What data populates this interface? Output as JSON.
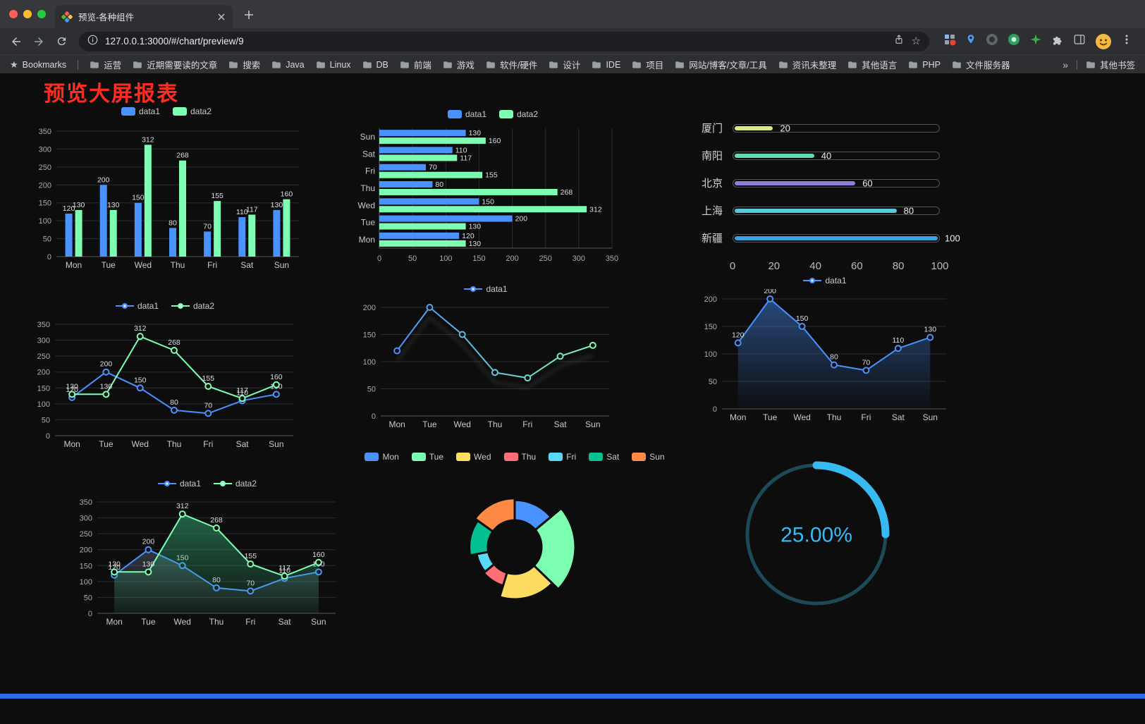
{
  "browser": {
    "tab_title": "预览-各种组件",
    "url": "127.0.0.1:3000/#/chart/preview/9",
    "bookmarks_bar": {
      "label": "Bookmarks",
      "folders": [
        "运营",
        "近期需要读的文章",
        "搜索",
        "Java",
        "Linux",
        "DB",
        "前端",
        "游戏",
        "软件/硬件",
        "设计",
        "IDE",
        "项目",
        "网站/博客/文章/工具",
        "资讯未整理",
        "其他语言",
        "PHP",
        "文件服务器"
      ],
      "overflow": "»",
      "other": "其他书签"
    }
  },
  "page": {
    "title": "预览大屏报表",
    "title_color": "#ff2d1f",
    "footer_color": "#2e6be6"
  },
  "chart_data": [
    {
      "id": "bar-vertical",
      "type": "bar",
      "legend": "bar",
      "categories": [
        "Mon",
        "Tue",
        "Wed",
        "Thu",
        "Fri",
        "Sat",
        "Sun"
      ],
      "ylim": [
        0,
        350
      ],
      "ystep": 50,
      "series": [
        {
          "name": "data1",
          "color": "#4992ff",
          "values": [
            120,
            200,
            150,
            80,
            70,
            110,
            130
          ]
        },
        {
          "name": "data2",
          "color": "#7cffb2",
          "values": [
            130,
            130,
            312,
            268,
            155,
            117,
            160
          ]
        }
      ]
    },
    {
      "id": "bar-horizontal",
      "type": "hbar",
      "legend": "bar",
      "categories": [
        "Mon",
        "Tue",
        "Wed",
        "Thu",
        "Fri",
        "Sat",
        "Sun"
      ],
      "xlim": [
        0,
        350
      ],
      "xstep": 50,
      "series": [
        {
          "name": "data1",
          "color": "#4992ff",
          "values": [
            120,
            200,
            150,
            80,
            70,
            110,
            130
          ]
        },
        {
          "name": "data2",
          "color": "#7cffb2",
          "values": [
            130,
            130,
            312,
            268,
            155,
            117,
            160
          ]
        }
      ]
    },
    {
      "id": "capsule-rank",
      "type": "capsule",
      "max": 100,
      "items": [
        {
          "label": "厦门",
          "value": 20,
          "color": "#d8ec85"
        },
        {
          "label": "南阳",
          "value": 40,
          "color": "#63dcb2"
        },
        {
          "label": "北京",
          "value": 60,
          "color": "#8b80dc"
        },
        {
          "label": "上海",
          "value": 80,
          "color": "#58c8dc"
        },
        {
          "label": "新疆",
          "value": 100,
          "color": "#3ba1e2"
        }
      ],
      "axis_ticks": [
        0,
        20,
        40,
        60,
        80,
        100
      ]
    },
    {
      "id": "line-two-series",
      "type": "line",
      "legend": "line",
      "labels": true,
      "categories": [
        "Mon",
        "Tue",
        "Wed",
        "Thu",
        "Fri",
        "Sat",
        "Sun"
      ],
      "ylim": [
        0,
        350
      ],
      "ystep": 50,
      "series": [
        {
          "name": "data1",
          "color": "#4992ff",
          "values": [
            120,
            200,
            150,
            80,
            70,
            110,
            130
          ]
        },
        {
          "name": "data2",
          "color": "#7cffb2",
          "values": [
            130,
            130,
            312,
            268,
            155,
            117,
            160
          ]
        }
      ]
    },
    {
      "id": "line-gradient",
      "type": "line",
      "legend": "line",
      "labels": false,
      "shadow": true,
      "categories": [
        "Mon",
        "Tue",
        "Wed",
        "Thu",
        "Fri",
        "Sat",
        "Sun"
      ],
      "ylim": [
        0,
        200
      ],
      "ystep": 50,
      "series": [
        {
          "name": "data1",
          "color": "#4992ff",
          "color2": "#7cffb2",
          "values": [
            120,
            200,
            150,
            80,
            70,
            110,
            130
          ]
        }
      ]
    },
    {
      "id": "area-single",
      "type": "line",
      "legend": "line",
      "labels": true,
      "categories": [
        "Mon",
        "Tue",
        "Wed",
        "Thu",
        "Fri",
        "Sat",
        "Sun"
      ],
      "ylim": [
        0,
        200
      ],
      "ystep": 50,
      "series": [
        {
          "name": "data1",
          "color": "#4992ff",
          "values": [
            120,
            200,
            150,
            80,
            70,
            110,
            130
          ],
          "area": [
            "rgba(73,146,255,0.45)",
            "rgba(73,146,255,0.02)"
          ]
        }
      ]
    },
    {
      "id": "line-area-two",
      "type": "line",
      "legend": "line",
      "labels": true,
      "categories": [
        "Mon",
        "Tue",
        "Wed",
        "Thu",
        "Fri",
        "Sat",
        "Sun"
      ],
      "ylim": [
        0,
        350
      ],
      "ystep": 50,
      "series": [
        {
          "name": "data1",
          "color": "#4992ff",
          "values": [
            120,
            200,
            150,
            80,
            70,
            110,
            130
          ],
          "area": [
            "rgba(130,150,175,0.30)",
            "rgba(130,150,175,0.04)"
          ]
        },
        {
          "name": "data2",
          "color": "#7cffb2",
          "values": [
            130,
            130,
            312,
            268,
            155,
            117,
            160
          ],
          "area": [
            "rgba(60,200,140,0.45)",
            "rgba(60,200,140,0.05)"
          ]
        }
      ]
    },
    {
      "id": "rose-pie",
      "type": "pie",
      "legend": "pie",
      "categories": [
        "Mon",
        "Tue",
        "Wed",
        "Thu",
        "Fri",
        "Sat",
        "Sun"
      ],
      "values": [
        120,
        200,
        150,
        80,
        70,
        110,
        130
      ],
      "colors": [
        "#4992ff",
        "#7cffb2",
        "#fddd60",
        "#ff6e76",
        "#58d9f9",
        "#05c091",
        "#ff8a45"
      ]
    },
    {
      "id": "gauge",
      "type": "gauge",
      "value": 25,
      "max": 100,
      "display": "25.00%",
      "color": "#37b9f2",
      "track_color": "#1d4a58"
    }
  ]
}
